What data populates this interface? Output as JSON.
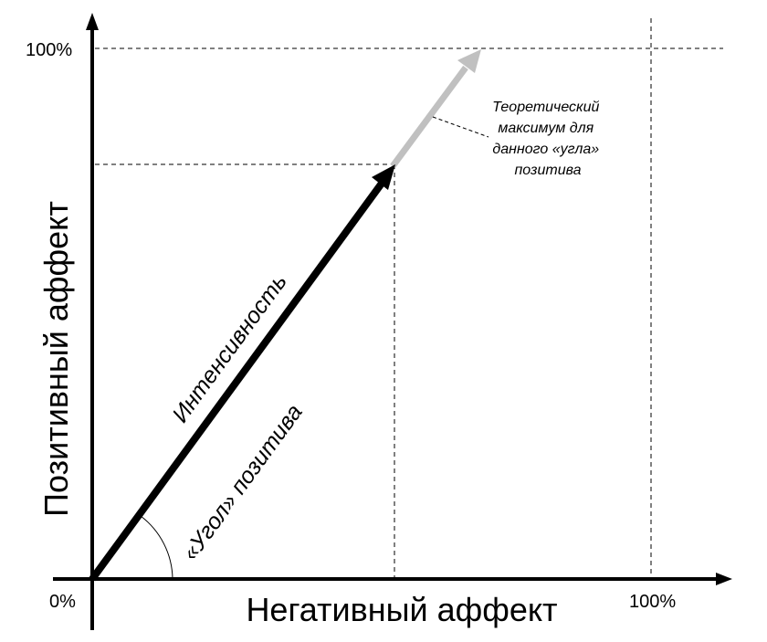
{
  "axes": {
    "x_title": "Негативный аффект",
    "y_title": "Позитивный аффект",
    "origin_label": "0%",
    "x_max_label": "100%",
    "y_max_label": "100%"
  },
  "vectors": {
    "intensity_label": "Интенсивность",
    "angle_label": "«Угол» позитива"
  },
  "annotation": {
    "lines": [
      "Теоретический",
      "максимум для",
      "данного «угла»",
      "позитива"
    ]
  },
  "colors": {
    "axis": "#000000",
    "intensity_arrow": "#000000",
    "theoretical_arrow": "#c0c0c0",
    "guides": "#000000"
  }
}
